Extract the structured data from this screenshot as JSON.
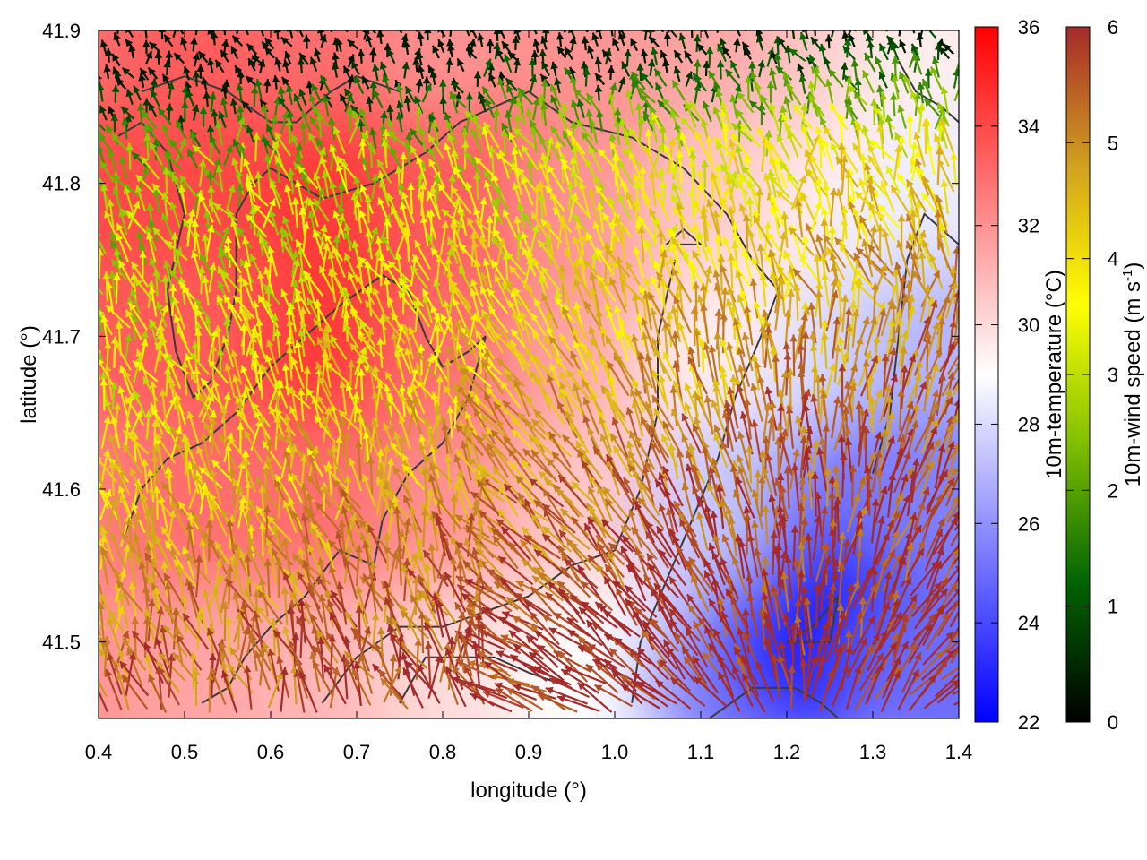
{
  "chart_data": {
    "type": "heatmap",
    "xlabel": "longitude (°)",
    "ylabel": "latitude (°)",
    "xlim": [
      0.4,
      1.4
    ],
    "ylim": [
      41.45,
      41.9
    ],
    "x_ticks": [
      "0.4",
      "0.5",
      "0.6",
      "0.7",
      "0.8",
      "0.9",
      "1.0",
      "1.1",
      "1.2",
      "1.3",
      "1.4"
    ],
    "y_ticks": [
      "41.5",
      "41.6",
      "41.7",
      "41.8",
      "41.9"
    ],
    "temperature_colorbar": {
      "label": "10m-temperature (°C)",
      "range": [
        22,
        36
      ],
      "ticks": [
        "22",
        "24",
        "26",
        "28",
        "30",
        "32",
        "34",
        "36"
      ],
      "colors": [
        "#0000ff",
        "#ffffff",
        "#ff0000"
      ]
    },
    "wind_colorbar": {
      "label_main": "10m-wind speed (m s",
      "label_sup": "-1",
      "label_end": ")",
      "range": [
        0,
        6
      ],
      "ticks": [
        "0",
        "1",
        "2",
        "3",
        "4",
        "5",
        "6"
      ],
      "colors": [
        "#000000",
        "#006400",
        "#7fbf00",
        "#ffff00",
        "#d2a01e",
        "#a52a2a"
      ]
    },
    "temperature_field": [
      {
        "lon": 0.4,
        "lat": 41.88,
        "t": 33.0
      },
      {
        "lon": 0.55,
        "lat": 41.88,
        "t": 33.5
      },
      {
        "lon": 0.7,
        "lat": 41.88,
        "t": 33.0
      },
      {
        "lon": 0.85,
        "lat": 41.88,
        "t": 32.0
      },
      {
        "lon": 1.0,
        "lat": 41.88,
        "t": 32.0
      },
      {
        "lon": 1.15,
        "lat": 41.88,
        "t": 31.5
      },
      {
        "lon": 1.3,
        "lat": 41.88,
        "t": 30.5
      },
      {
        "lon": 1.4,
        "lat": 41.88,
        "t": 29.5
      },
      {
        "lon": 0.4,
        "lat": 41.78,
        "t": 34.0
      },
      {
        "lon": 0.55,
        "lat": 41.78,
        "t": 34.0
      },
      {
        "lon": 0.7,
        "lat": 41.78,
        "t": 34.5
      },
      {
        "lon": 0.85,
        "lat": 41.78,
        "t": 33.5
      },
      {
        "lon": 1.0,
        "lat": 41.78,
        "t": 32.0
      },
      {
        "lon": 1.15,
        "lat": 41.78,
        "t": 30.5
      },
      {
        "lon": 1.3,
        "lat": 41.78,
        "t": 29.5
      },
      {
        "lon": 1.4,
        "lat": 41.78,
        "t": 28.5
      },
      {
        "lon": 0.4,
        "lat": 41.68,
        "t": 33.5
      },
      {
        "lon": 0.55,
        "lat": 41.68,
        "t": 33.5
      },
      {
        "lon": 0.7,
        "lat": 41.68,
        "t": 34.5
      },
      {
        "lon": 0.85,
        "lat": 41.68,
        "t": 33.0
      },
      {
        "lon": 1.0,
        "lat": 41.68,
        "t": 31.5
      },
      {
        "lon": 1.15,
        "lat": 41.68,
        "t": 29.5
      },
      {
        "lon": 1.3,
        "lat": 41.68,
        "t": 28.0
      },
      {
        "lon": 1.4,
        "lat": 41.68,
        "t": 27.0
      },
      {
        "lon": 0.4,
        "lat": 41.58,
        "t": 32.5
      },
      {
        "lon": 0.55,
        "lat": 41.58,
        "t": 33.0
      },
      {
        "lon": 0.7,
        "lat": 41.58,
        "t": 33.0
      },
      {
        "lon": 0.85,
        "lat": 41.58,
        "t": 32.0
      },
      {
        "lon": 1.0,
        "lat": 41.58,
        "t": 30.5
      },
      {
        "lon": 1.15,
        "lat": 41.58,
        "t": 27.5
      },
      {
        "lon": 1.3,
        "lat": 41.58,
        "t": 25.0
      },
      {
        "lon": 1.4,
        "lat": 41.58,
        "t": 25.5
      },
      {
        "lon": 0.4,
        "lat": 41.47,
        "t": 32.0
      },
      {
        "lon": 0.55,
        "lat": 41.47,
        "t": 31.5
      },
      {
        "lon": 0.7,
        "lat": 41.47,
        "t": 31.0
      },
      {
        "lon": 0.85,
        "lat": 41.47,
        "t": 30.0
      },
      {
        "lon": 1.0,
        "lat": 41.47,
        "t": 29.0
      },
      {
        "lon": 1.15,
        "lat": 41.47,
        "t": 25.5
      },
      {
        "lon": 1.25,
        "lat": 41.5,
        "t": 23.0
      },
      {
        "lon": 1.4,
        "lat": 41.47,
        "t": 25.0
      }
    ],
    "contours": [
      [
        [
          0.58,
          41.8
        ],
        [
          0.6,
          41.81
        ],
        [
          0.66,
          41.79
        ],
        [
          0.72,
          41.8
        ],
        [
          0.78,
          41.82
        ],
        [
          0.82,
          41.84
        ],
        [
          0.9,
          41.86
        ],
        [
          0.95,
          41.84
        ],
        [
          1.02,
          41.83
        ],
        [
          1.08,
          41.81
        ],
        [
          1.13,
          41.78
        ],
        [
          1.16,
          41.75
        ],
        [
          1.19,
          41.73
        ]
      ],
      [
        [
          1.19,
          41.73
        ],
        [
          1.17,
          41.7
        ],
        [
          1.14,
          41.66
        ],
        [
          1.12,
          41.62
        ],
        [
          1.09,
          41.58
        ],
        [
          1.06,
          41.54
        ],
        [
          1.03,
          41.5
        ],
        [
          1.02,
          41.46
        ]
      ],
      [
        [
          0.45,
          41.86
        ],
        [
          0.5,
          41.87
        ],
        [
          0.55,
          41.86
        ],
        [
          0.6,
          41.84
        ],
        [
          0.63,
          41.84
        ],
        [
          0.67,
          41.86
        ],
        [
          0.7,
          41.87
        ],
        [
          0.75,
          41.86
        ]
      ],
      [
        [
          0.42,
          41.83
        ],
        [
          0.45,
          41.84
        ],
        [
          0.48,
          41.82
        ],
        [
          0.5,
          41.78
        ],
        [
          0.48,
          41.73
        ],
        [
          0.49,
          41.69
        ],
        [
          0.51,
          41.66
        ],
        [
          0.53,
          41.67
        ],
        [
          0.55,
          41.7
        ],
        [
          0.56,
          41.73
        ],
        [
          0.56,
          41.78
        ],
        [
          0.58,
          41.8
        ]
      ],
      [
        [
          0.43,
          41.57
        ],
        [
          0.45,
          41.6
        ],
        [
          0.48,
          41.62
        ],
        [
          0.52,
          41.63
        ],
        [
          0.56,
          41.65
        ],
        [
          0.6,
          41.68
        ],
        [
          0.64,
          41.7
        ],
        [
          0.68,
          41.72
        ],
        [
          0.73,
          41.74
        ],
        [
          0.76,
          41.73
        ],
        [
          0.78,
          41.7
        ],
        [
          0.8,
          41.68
        ],
        [
          0.83,
          41.69
        ],
        [
          0.85,
          41.7
        ]
      ],
      [
        [
          0.85,
          41.7
        ],
        [
          0.83,
          41.66
        ],
        [
          0.8,
          41.63
        ],
        [
          0.76,
          41.61
        ],
        [
          0.73,
          41.58
        ],
        [
          0.72,
          41.55
        ],
        [
          0.68,
          41.56
        ],
        [
          0.64,
          41.53
        ],
        [
          0.6,
          41.51
        ],
        [
          0.57,
          41.49
        ],
        [
          0.55,
          41.47
        ],
        [
          0.52,
          41.46
        ]
      ],
      [
        [
          0.66,
          41.46
        ],
        [
          0.7,
          41.49
        ],
        [
          0.75,
          41.51
        ],
        [
          0.8,
          41.51
        ],
        [
          0.85,
          41.52
        ],
        [
          0.9,
          41.53
        ],
        [
          0.95,
          41.55
        ],
        [
          1.0,
          41.56
        ],
        [
          1.03,
          41.6
        ],
        [
          1.05,
          41.65
        ],
        [
          1.05,
          41.7
        ],
        [
          1.07,
          41.75
        ]
      ],
      [
        [
          0.75,
          41.46
        ],
        [
          0.78,
          41.49
        ],
        [
          0.82,
          41.49
        ],
        [
          0.86,
          41.49
        ],
        [
          0.9,
          41.48
        ],
        [
          0.95,
          41.47
        ]
      ],
      [
        [
          1.11,
          41.45
        ],
        [
          1.16,
          41.47
        ],
        [
          1.21,
          41.47
        ],
        [
          1.24,
          41.46
        ],
        [
          1.26,
          41.45
        ]
      ],
      [
        [
          1.2,
          41.5
        ],
        [
          1.23,
          41.51
        ],
        [
          1.26,
          41.53
        ],
        [
          1.25,
          41.5
        ],
        [
          1.2,
          41.5
        ]
      ],
      [
        [
          1.3,
          41.61
        ],
        [
          1.32,
          41.65
        ],
        [
          1.33,
          41.7
        ],
        [
          1.34,
          41.75
        ],
        [
          1.36,
          41.78
        ],
        [
          1.4,
          41.76
        ]
      ],
      [
        [
          1.33,
          41.88
        ],
        [
          1.35,
          41.86
        ],
        [
          1.38,
          41.85
        ],
        [
          1.4,
          41.84
        ]
      ],
      [
        [
          1.06,
          41.76
        ],
        [
          1.08,
          41.77
        ],
        [
          1.1,
          41.76
        ],
        [
          1.07,
          41.76
        ]
      ]
    ],
    "grid": false,
    "legend_placement": "right"
  }
}
